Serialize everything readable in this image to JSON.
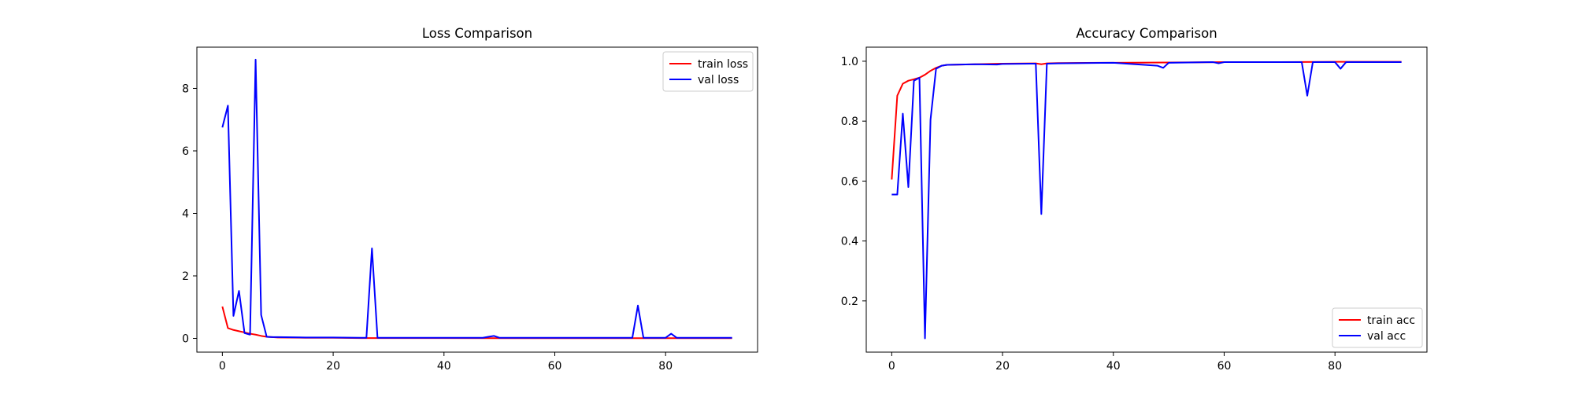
{
  "colors": {
    "train": "#ff0000",
    "val": "#0000ff",
    "axes": "#000000",
    "legend_border": "#cccccc"
  },
  "chart_data": [
    {
      "type": "line",
      "title": "Loss Comparison",
      "xlabel": "",
      "ylabel": "",
      "xlim": [
        -4.6,
        96.6
      ],
      "ylim": [
        -0.44,
        9.32
      ],
      "xticks": [
        0,
        20,
        40,
        60,
        80
      ],
      "yticks": [
        0,
        2,
        4,
        6,
        8
      ],
      "grid": false,
      "legend_position": "upper right",
      "series": [
        {
          "name": "train loss",
          "color": "#ff0000",
          "x": [
            0,
            1,
            2,
            3,
            4,
            5,
            6,
            7,
            8,
            9,
            10,
            15,
            20,
            25,
            30,
            40,
            50,
            60,
            70,
            80,
            92
          ],
          "y": [
            1.02,
            0.33,
            0.27,
            0.23,
            0.19,
            0.15,
            0.12,
            0.08,
            0.05,
            0.04,
            0.03,
            0.02,
            0.02,
            0.01,
            0.01,
            0.01,
            0.005,
            0.005,
            0.005,
            0.005,
            0.005
          ]
        },
        {
          "name": "val loss",
          "color": "#0000ff",
          "x": [
            0,
            1,
            2,
            3,
            4,
            5,
            6,
            7,
            8,
            9,
            10,
            15,
            20,
            25,
            26,
            27,
            28,
            30,
            40,
            47,
            48,
            49,
            50,
            60,
            70,
            74,
            75,
            76,
            80,
            81,
            82,
            92
          ],
          "y": [
            6.75,
            7.45,
            0.72,
            1.52,
            0.17,
            0.12,
            8.92,
            0.75,
            0.05,
            0.04,
            0.04,
            0.03,
            0.03,
            0.02,
            0.02,
            2.88,
            0.02,
            0.02,
            0.02,
            0.02,
            0.05,
            0.08,
            0.02,
            0.02,
            0.02,
            0.02,
            1.05,
            0.02,
            0.02,
            0.15,
            0.02,
            0.02
          ]
        }
      ]
    },
    {
      "type": "line",
      "title": "Accuracy Comparison",
      "xlabel": "",
      "ylabel": "",
      "xlim": [
        -4.6,
        96.6
      ],
      "ylim": [
        0.029,
        1.047
      ],
      "xticks": [
        0,
        20,
        40,
        60,
        80
      ],
      "yticks": [
        0.2,
        0.4,
        0.6,
        0.8,
        1.0
      ],
      "ytick_labels": [
        "0.2",
        "0.4",
        "0.6",
        "0.8",
        "1.0"
      ],
      "grid": false,
      "legend_position": "lower right",
      "series": [
        {
          "name": "train acc",
          "color": "#ff0000",
          "x": [
            0,
            1,
            2,
            3,
            4,
            5,
            6,
            7,
            8,
            9,
            10,
            15,
            20,
            26,
            27,
            28,
            30,
            40,
            50,
            60,
            70,
            80,
            92
          ],
          "y": [
            0.605,
            0.885,
            0.925,
            0.935,
            0.94,
            0.945,
            0.955,
            0.968,
            0.978,
            0.985,
            0.988,
            0.99,
            0.992,
            0.993,
            0.99,
            0.993,
            0.994,
            0.995,
            0.996,
            0.997,
            0.997,
            0.998,
            0.998
          ]
        },
        {
          "name": "val acc",
          "color": "#0000ff",
          "x": [
            0,
            1,
            2,
            3,
            4,
            5,
            6,
            7,
            8,
            9,
            10,
            15,
            19,
            20,
            25,
            26,
            27,
            28,
            30,
            40,
            48,
            49,
            50,
            58,
            59,
            60,
            74,
            75,
            76,
            80,
            81,
            82,
            92
          ],
          "y": [
            0.555,
            0.555,
            0.825,
            0.58,
            0.935,
            0.945,
            0.075,
            0.805,
            0.975,
            0.985,
            0.988,
            0.99,
            0.989,
            0.991,
            0.992,
            0.992,
            0.49,
            0.992,
            0.993,
            0.995,
            0.985,
            0.978,
            0.995,
            0.997,
            0.993,
            0.997,
            0.997,
            0.885,
            0.997,
            0.997,
            0.975,
            0.997,
            0.997
          ]
        }
      ]
    }
  ]
}
